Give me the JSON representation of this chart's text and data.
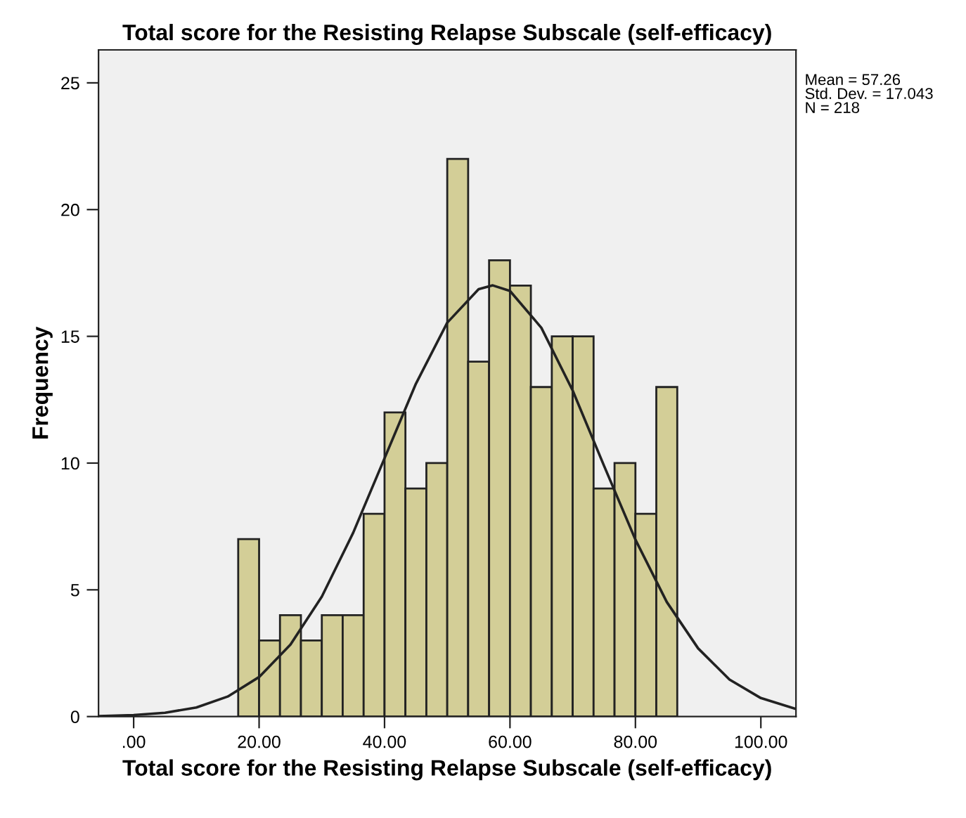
{
  "chart_data": {
    "type": "histogram",
    "title": "Total score for the Resisting Relapse Subscale (self-efficacy)",
    "xlabel": "Total score for the Resisting Relapse Subscale (self-efficacy)",
    "ylabel": "Frequency",
    "annotations": [
      "Mean = 57.26\nStd. Dev. = 17.043\nN = 218"
    ],
    "series": [
      {
        "color": "#d3ce97",
        "bins": [
          16.67,
          20,
          23.33,
          26.67,
          30,
          33.33,
          36.67,
          40,
          43.33,
          46.67,
          50,
          53.33,
          56.67,
          60,
          63.33,
          66.67,
          70,
          73.33,
          76.67,
          80,
          83.33,
          86.67
        ],
        "values": [
          7,
          3,
          4,
          3,
          4,
          4,
          8,
          12,
          9,
          10,
          22,
          14,
          18,
          17,
          13,
          15,
          15,
          9,
          10,
          8,
          13
        ]
      },
      {
        "type": "line",
        "color": "#222222",
        "x": [
          -5.6,
          0,
          5,
          10,
          15,
          20,
          25,
          30,
          35,
          40,
          45,
          50,
          55,
          57.26,
          60,
          65,
          70,
          75,
          80,
          85,
          90,
          95,
          100,
          105.6
        ],
        "values": [
          0.02,
          0.06,
          0.15,
          0.36,
          0.79,
          1.56,
          2.84,
          4.73,
          7.25,
          10.19,
          13.13,
          15.54,
          16.86,
          17.01,
          16.79,
          15.34,
          12.86,
          9.89,
          6.98,
          4.52,
          2.69,
          1.46,
          0.73,
          0.3
        ]
      }
    ],
    "xlim": [
      -5.6,
      105.6
    ],
    "ylim": [
      0,
      26.3
    ],
    "xticks": [
      {
        "value": 0,
        "label": ".00"
      },
      {
        "value": 20,
        "label": "20.00"
      },
      {
        "value": 40,
        "label": "40.00"
      },
      {
        "value": 60,
        "label": "60.00"
      },
      {
        "value": 80,
        "label": "80.00"
      },
      {
        "value": 100,
        "label": "100.00"
      }
    ],
    "yticks": [
      0,
      5,
      10,
      15,
      20,
      25
    ],
    "grid": false,
    "legend": false
  }
}
